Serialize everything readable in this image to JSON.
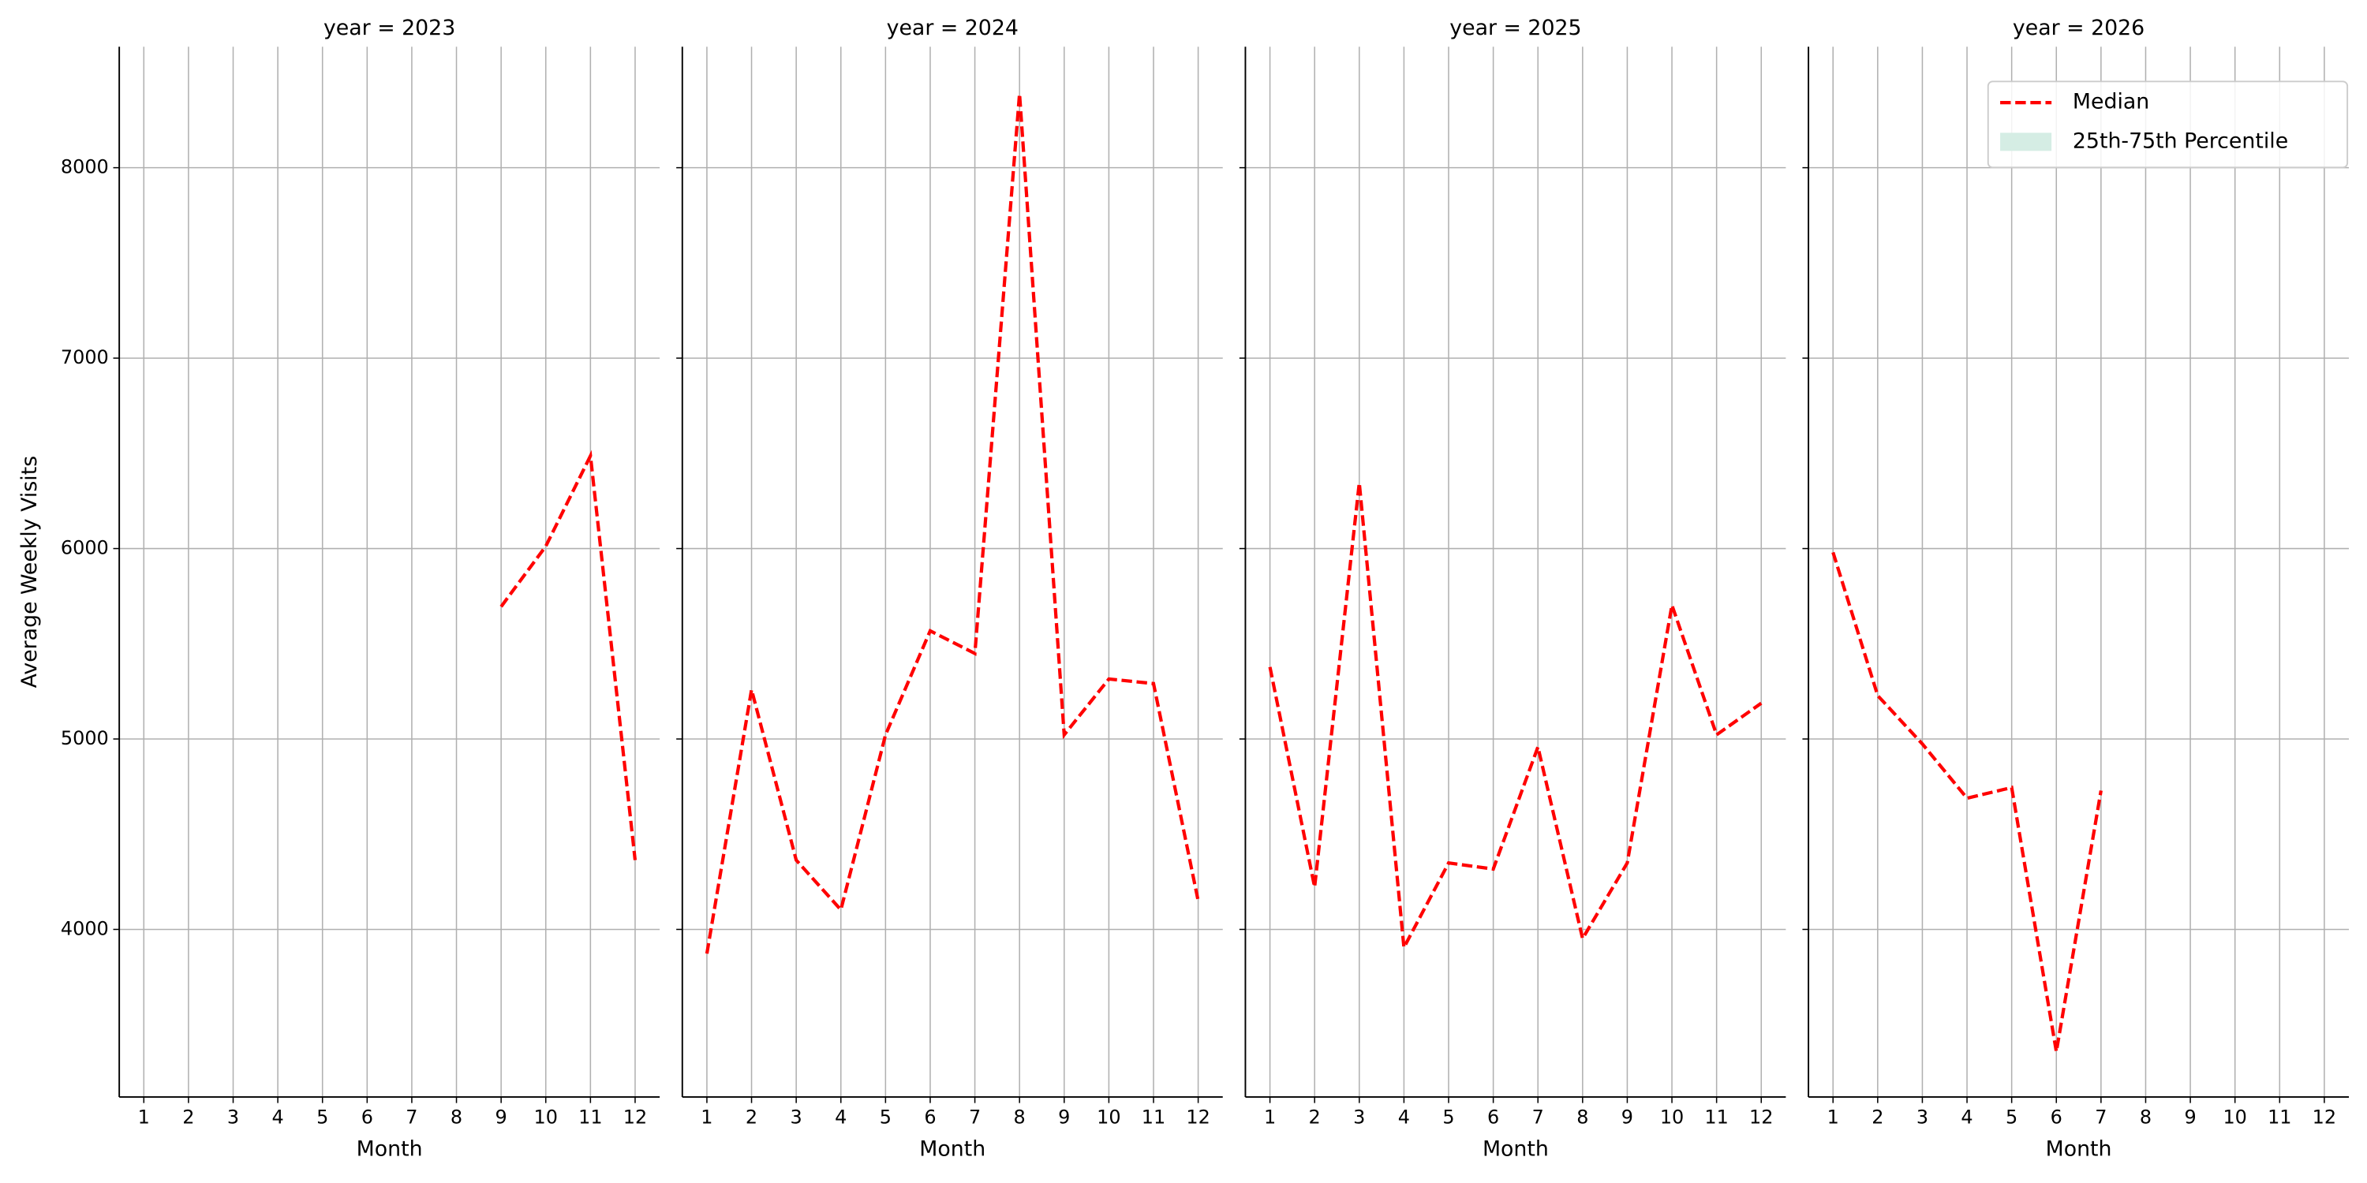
{
  "chart_data": [
    {
      "type": "line",
      "title": "year = 2023",
      "xlabel": "Month",
      "ylabel": "Average Weekly Visits",
      "x": [
        1,
        2,
        3,
        4,
        5,
        6,
        7,
        8,
        9,
        10,
        11,
        12
      ],
      "series": [
        {
          "name": "Median",
          "color": "#ff0000",
          "values": [
            null,
            null,
            null,
            null,
            null,
            null,
            null,
            null,
            5695,
            6012,
            6487,
            4364
          ]
        }
      ],
      "xlim": [
        0.45,
        12.55
      ],
      "xticks": [
        1,
        2,
        3,
        4,
        5,
        6,
        7,
        8,
        9,
        10,
        11,
        12
      ],
      "ylim": [
        3120,
        8635
      ],
      "yticks": [
        4000,
        5000,
        6000,
        7000,
        8000
      ],
      "grid": true
    },
    {
      "type": "line",
      "title": "year = 2024",
      "xlabel": "Month",
      "x": [
        1,
        2,
        3,
        4,
        5,
        6,
        7,
        8,
        9,
        10,
        11,
        12
      ],
      "series": [
        {
          "name": "Median",
          "color": "#ff0000",
          "values": [
            3873,
            5259,
            4364,
            4103,
            5022,
            5568,
            5449,
            8388,
            5022,
            5315,
            5291,
            4150
          ]
        }
      ],
      "xlim": [
        0.45,
        12.55
      ],
      "xticks": [
        1,
        2,
        3,
        4,
        5,
        6,
        7,
        8,
        9,
        10,
        11,
        12
      ],
      "ylim": [
        3120,
        8635
      ],
      "yticks": [
        4000,
        5000,
        6000,
        7000,
        8000
      ],
      "grid": true
    },
    {
      "type": "line",
      "title": "year = 2025",
      "xlabel": "Month",
      "x": [
        1,
        2,
        3,
        4,
        5,
        6,
        7,
        8,
        9,
        10,
        11,
        12
      ],
      "series": [
        {
          "name": "Median",
          "color": "#ff0000",
          "values": [
            5378,
            4222,
            6345,
            3905,
            4349,
            4317,
            4958,
            3952,
            4349,
            5703,
            5022,
            5188
          ]
        }
      ],
      "xlim": [
        0.45,
        12.55
      ],
      "xticks": [
        1,
        2,
        3,
        4,
        5,
        6,
        7,
        8,
        9,
        10,
        11,
        12
      ],
      "ylim": [
        3120,
        8635
      ],
      "yticks": [
        4000,
        5000,
        6000,
        7000,
        8000
      ],
      "grid": true
    },
    {
      "type": "line",
      "title": "year = 2026",
      "xlabel": "Month",
      "x": [
        1,
        2,
        3,
        4,
        5,
        6,
        7,
        8,
        9,
        10,
        11,
        12
      ],
      "series": [
        {
          "name": "Median",
          "color": "#ff0000",
          "values": [
            5980,
            5228,
            4974,
            4689,
            4745,
            3358,
            4729,
            null,
            null,
            null,
            null,
            null
          ]
        },
        {
          "name": "25th-75th Percentile",
          "color": "#d5ede4"
        }
      ],
      "xlim": [
        0.45,
        12.55
      ],
      "xticks": [
        1,
        2,
        3,
        4,
        5,
        6,
        7,
        8,
        9,
        10,
        11,
        12
      ],
      "ylim": [
        3120,
        8635
      ],
      "yticks": [
        4000,
        5000,
        6000,
        7000,
        8000
      ],
      "grid": true,
      "legend": "upper right"
    }
  ]
}
